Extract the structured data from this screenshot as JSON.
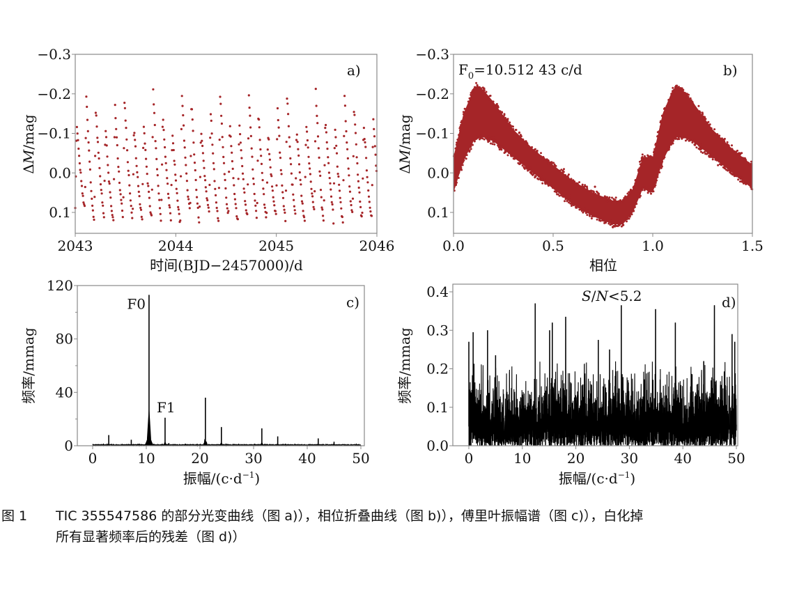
{
  "figure": {
    "caption_number": "图 1",
    "caption_line1": "TIC 355547586 的部分光变曲线（图 a)），相位折叠曲线（图 b)），傅里叶振幅谱（图 c)），白化掉",
    "caption_line2": "所有显著频率后的残差（图 d)）"
  },
  "colors": {
    "light_curve": "#a52528",
    "spectrum": "#000000",
    "frame": "#888888"
  },
  "chart_data": [
    {
      "id": "a",
      "type": "scatter",
      "panel_label": "a)",
      "title": "",
      "xlabel": "时间(BJD−2457000)/d",
      "ylabel": "ΔM/mag",
      "xlim": [
        2043,
        2046
      ],
      "ylim": [
        0.15,
        -0.3
      ],
      "y_inverted": true,
      "xticks": [
        2043,
        2044,
        2045,
        2046
      ],
      "xtick_labels": [
        "2043",
        "2044",
        "2045",
        "2046"
      ],
      "yticks": [
        -0.3,
        -0.2,
        -0.1,
        0.0,
        0.1
      ],
      "ytick_labels": [
        "−0.3",
        "−0.2",
        "−0.1",
        "0.0",
        "0.1"
      ],
      "grid": false,
      "series": [
        {
          "name": "light curve",
          "model": {
            "frequency_c_per_d": 10.51243,
            "mean": 0.0,
            "min_range": [
              -0.21,
              -0.1
            ],
            "max_range": [
              0.09,
              0.13
            ],
            "cadence_d": 0.00139
          },
          "peak_values": [
            -0.13,
            -0.2,
            -0.16,
            -0.12,
            -0.17,
            -0.19,
            -0.12,
            -0.13,
            -0.21,
            -0.15,
            -0.11,
            -0.2,
            -0.18,
            -0.11,
            -0.16,
            -0.2,
            -0.13,
            -0.13,
            -0.2,
            -0.16,
            -0.1,
            -0.17,
            -0.2,
            -0.12,
            -0.13,
            -0.21,
            -0.14,
            -0.12,
            -0.19,
            -0.17,
            -0.13,
            -0.14
          ]
        }
      ]
    },
    {
      "id": "b",
      "type": "scatter",
      "panel_label": "b)",
      "annotation": "F₀=10.512 43 c/d",
      "annotation_main": "F",
      "annotation_sub": "0",
      "annotation_rest": "=10.512 43 c/d",
      "xlabel": "相位",
      "ylabel": "ΔM/mag",
      "xlim": [
        0.0,
        1.5
      ],
      "ylim": [
        0.15,
        -0.3
      ],
      "y_inverted": true,
      "xticks": [
        0.0,
        0.5,
        1.0,
        1.5
      ],
      "xtick_labels": [
        "0.0",
        "0.5",
        "1.0",
        "1.5"
      ],
      "yticks": [
        -0.3,
        -0.2,
        -0.1,
        0.0,
        0.1
      ],
      "ytick_labels": [
        "−0.3",
        "−0.2",
        "−0.1",
        "0.0",
        "0.1"
      ],
      "grid": false,
      "series": [
        {
          "name": "phase-folded light curve",
          "envelope_phase": [
            0.0,
            0.05,
            0.1,
            0.12,
            0.15,
            0.2,
            0.3,
            0.4,
            0.5,
            0.6,
            0.7,
            0.8,
            0.85,
            0.9,
            0.95,
            1.0
          ],
          "envelope_upper": [
            -0.04,
            -0.15,
            -0.21,
            -0.22,
            -0.21,
            -0.18,
            -0.11,
            -0.06,
            -0.02,
            0.02,
            0.05,
            0.07,
            0.07,
            0.04,
            -0.04,
            -0.04
          ],
          "envelope_lower": [
            0.05,
            -0.03,
            -0.08,
            -0.09,
            -0.09,
            -0.08,
            -0.04,
            0.0,
            0.04,
            0.08,
            0.11,
            0.13,
            0.13,
            0.1,
            0.04,
            0.05
          ]
        }
      ]
    },
    {
      "id": "c",
      "type": "line",
      "panel_label": "c)",
      "xlabel": "振幅/(c·d⁻¹)",
      "xlabel_main": "振幅/(c·d",
      "xlabel_sup": "−1",
      "xlabel_end": ")",
      "ylabel": "频率/mmag",
      "xlim": [
        -2.5,
        53
      ],
      "ylim": [
        0,
        120
      ],
      "xticks": [
        0,
        10,
        20,
        30,
        40,
        50
      ],
      "xtick_labels": [
        "0",
        "10",
        "20",
        "30",
        "40",
        "50"
      ],
      "yticks": [
        0,
        40,
        80,
        120
      ],
      "ytick_labels": [
        "0",
        "40",
        "80",
        "120"
      ],
      "minor_yticks": [
        20,
        60,
        100
      ],
      "grid": false,
      "annotations": [
        {
          "text": "F0",
          "x": 10.51,
          "y": 113
        },
        {
          "text": "F1",
          "x": 13.5,
          "y": 21
        }
      ],
      "peaks": [
        {
          "x": 3.0,
          "y": 8
        },
        {
          "x": 7.2,
          "y": 4.5
        },
        {
          "x": 10.51,
          "y": 113
        },
        {
          "x": 13.5,
          "y": 21
        },
        {
          "x": 14.2,
          "y": 2
        },
        {
          "x": 17.3,
          "y": 1.5
        },
        {
          "x": 21.02,
          "y": 36
        },
        {
          "x": 24.0,
          "y": 14
        },
        {
          "x": 27.2,
          "y": 1.5
        },
        {
          "x": 31.54,
          "y": 13
        },
        {
          "x": 34.5,
          "y": 7
        },
        {
          "x": 37.7,
          "y": 1.5
        },
        {
          "x": 42.05,
          "y": 5.5
        },
        {
          "x": 45.0,
          "y": 3
        },
        {
          "x": 48.3,
          "y": 1
        }
      ]
    },
    {
      "id": "d",
      "type": "line",
      "panel_label": "d)",
      "annotation": "S/N<5.2",
      "xlabel": "振幅/(c·d⁻¹)",
      "xlabel_main": "振幅/(c·d",
      "xlabel_sup": "−1",
      "xlabel_end": ")",
      "ylabel": "频率/mmag",
      "xlim": [
        -2.5,
        53
      ],
      "ylim": [
        0,
        0.42
      ],
      "xticks": [
        0,
        10,
        20,
        30,
        40,
        50
      ],
      "xtick_labels": [
        "0",
        "10",
        "20",
        "30",
        "40",
        "50"
      ],
      "yticks": [
        0.0,
        0.1,
        0.2,
        0.3,
        0.4
      ],
      "ytick_labels": [
        "0.0",
        "0.1",
        "0.2",
        "0.3",
        "0.4"
      ],
      "grid": false,
      "noise_level_mean": 0.07,
      "notable_peaks": [
        {
          "x": 0.0,
          "y": 0.27
        },
        {
          "x": 0.8,
          "y": 0.295
        },
        {
          "x": 3.5,
          "y": 0.3
        },
        {
          "x": 5.0,
          "y": 0.235
        },
        {
          "x": 12.4,
          "y": 0.37
        },
        {
          "x": 15.1,
          "y": 0.3
        },
        {
          "x": 15.6,
          "y": 0.32
        },
        {
          "x": 18.1,
          "y": 0.335
        },
        {
          "x": 24.2,
          "y": 0.275
        },
        {
          "x": 26.3,
          "y": 0.25
        },
        {
          "x": 28.5,
          "y": 0.365
        },
        {
          "x": 34.9,
          "y": 0.355
        },
        {
          "x": 38.6,
          "y": 0.32
        },
        {
          "x": 43.9,
          "y": 0.22
        },
        {
          "x": 45.9,
          "y": 0.365
        },
        {
          "x": 49.2,
          "y": 0.29
        },
        {
          "x": 49.7,
          "y": 0.27
        }
      ]
    }
  ]
}
